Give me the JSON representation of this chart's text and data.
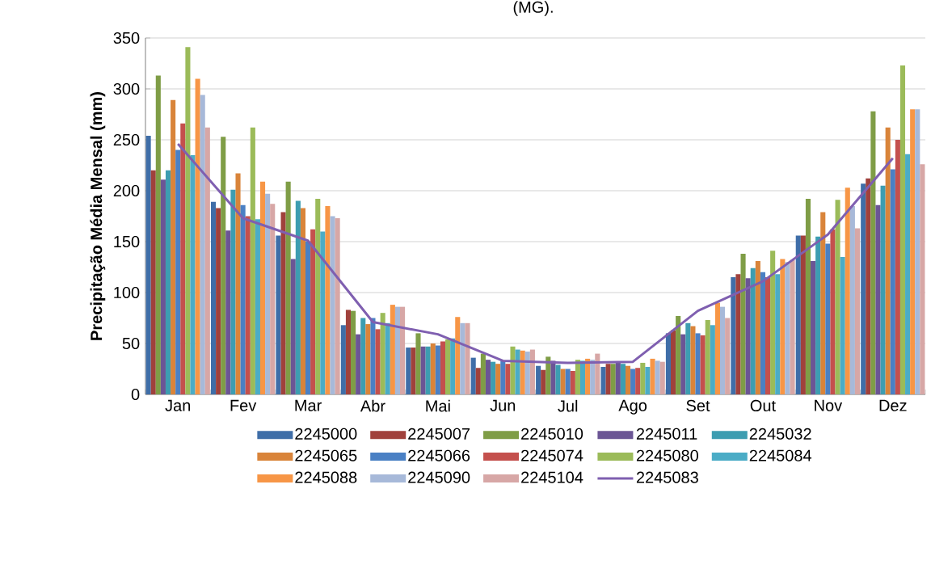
{
  "chart_data": {
    "type": "bar",
    "ylabel": "Precipitação Média Mensal (mm)",
    "annotations": [
      "(MG)."
    ],
    "categories": [
      "Jan",
      "Fev",
      "Mar",
      "Abr",
      "Mai",
      "Jun",
      "Jul",
      "Ago",
      "Set",
      "Out",
      "Nov",
      "Dez"
    ],
    "ylim": [
      0,
      350
    ],
    "yticks": [
      0,
      50,
      100,
      150,
      200,
      250,
      300,
      350
    ],
    "grid": "y",
    "legend": "bottom",
    "series": [
      {
        "name": "2245000",
        "color": "#3f6ea8",
        "values": [
          254,
          189,
          156,
          68,
          46,
          36,
          28,
          27,
          60,
          115,
          156,
          207
        ]
      },
      {
        "name": "2245007",
        "color": "#a0413c",
        "values": [
          220,
          183,
          179,
          83,
          46,
          26,
          24,
          30,
          63,
          118,
          156,
          212
        ]
      },
      {
        "name": "2245010",
        "color": "#7f9d46",
        "values": [
          313,
          253,
          209,
          82,
          60,
          40,
          37,
          30,
          77,
          138,
          192,
          278
        ]
      },
      {
        "name": "2245011",
        "color": "#6b5595",
        "values": [
          211,
          161,
          133,
          59,
          47,
          34,
          33,
          32,
          59,
          114,
          131,
          186
        ]
      },
      {
        "name": "2245032",
        "color": "#3d9db1",
        "values": [
          220,
          201,
          190,
          75,
          47,
          32,
          29,
          30,
          70,
          124,
          155,
          205
        ]
      },
      {
        "name": "2245065",
        "color": "#d9843a",
        "values": [
          289,
          217,
          183,
          69,
          50,
          30,
          25,
          28,
          67,
          131,
          179,
          262
        ]
      },
      {
        "name": "2245066",
        "color": "#4a80c4",
        "values": [
          240,
          186,
          150,
          75,
          48,
          33,
          25,
          25,
          60,
          120,
          148,
          221
        ]
      },
      {
        "name": "2245074",
        "color": "#c4504d",
        "values": [
          266,
          175,
          162,
          64,
          52,
          30,
          23,
          26,
          58,
          115,
          162,
          250
        ]
      },
      {
        "name": "2245080",
        "color": "#9bbb59",
        "values": [
          341,
          262,
          192,
          80,
          54,
          47,
          34,
          31,
          73,
          141,
          191,
          323
        ]
      },
      {
        "name": "2245084",
        "color": "#4bacc6",
        "values": [
          235,
          172,
          160,
          70,
          55,
          44,
          33,
          27,
          68,
          118,
          135,
          236
        ]
      },
      {
        "name": "2245088",
        "color": "#f79646",
        "values": [
          310,
          209,
          185,
          88,
          76,
          43,
          35,
          35,
          90,
          133,
          203,
          280
        ]
      },
      {
        "name": "2245090",
        "color": "#a7b9d9",
        "values": [
          294,
          197,
          175,
          86,
          70,
          42,
          34,
          33,
          86,
          130,
          185,
          280
        ]
      },
      {
        "name": "2245104",
        "color": "#d7a7a6",
        "values": [
          262,
          187,
          173,
          86,
          70,
          44,
          40,
          32,
          75,
          132,
          163,
          226
        ]
      },
      {
        "name": "2245083",
        "type": "line",
        "color": "#7f5fb0",
        "marker": "none",
        "line_style": "solid",
        "values": [
          246,
          173,
          151,
          71,
          59,
          33,
          31,
          32,
          82,
          111,
          157,
          232
        ]
      }
    ]
  }
}
